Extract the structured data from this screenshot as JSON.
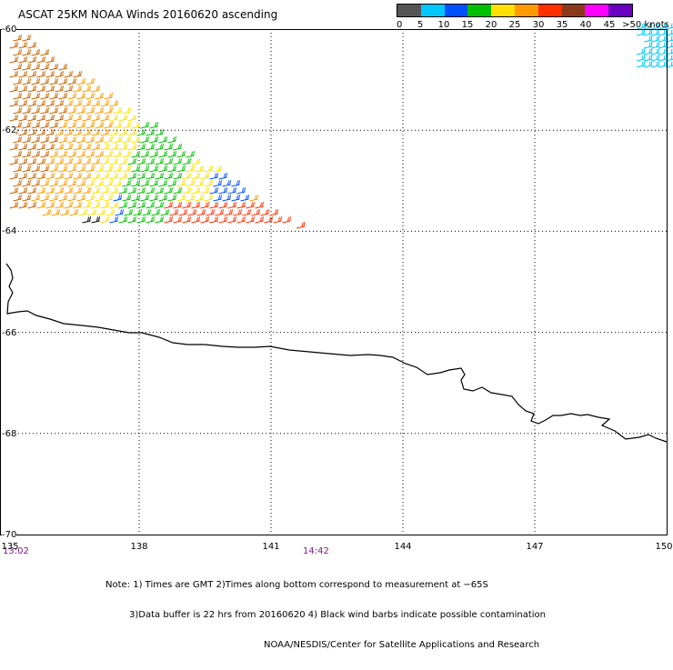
{
  "title": "ASCAT 25KM NOAA Winds 20160620 ascending",
  "legend": {
    "labels": [
      "0",
      "5",
      "10",
      "15",
      "20",
      "25",
      "30",
      "35",
      "40",
      "45",
      ">50 knots"
    ],
    "colors": [
      "#555555",
      "#00c8ff",
      "#0050ff",
      "#00c000",
      "#ffe000",
      "#ff9a00",
      "#ff3000",
      "#8a3a1a",
      "#ff00ff",
      "#6a00c0"
    ],
    "colors_extra": [
      "#ff0000"
    ]
  },
  "axes": {
    "x_ticks": [
      "135",
      "138",
      "141",
      "144",
      "147",
      "150"
    ],
    "y_ticks": [
      "-60",
      "-62",
      "-64",
      "-66",
      "-68",
      "-70"
    ],
    "x_range": [
      135,
      150
    ],
    "y_range": [
      -70,
      -60
    ]
  },
  "times": {
    "left": "13:02",
    "mid": "14:42"
  },
  "notes": [
    "Note: 1) Times are GMT 2)Times along bottom correspond to measurement at −65S",
    "3)Data buffer is 22 hrs from 20160620 4) Black wind barbs indicate possible contamination",
    "NOAA/NESDIS/Center for Satellite Applications and Research"
  ],
  "map_features": {
    "coastline": "Antarctic coastline",
    "wind_swath_colors": {
      "brown": "#c86400",
      "orange": "#ff9a00",
      "yellow": "#ffe000",
      "green": "#00c000",
      "blue": "#0050ff",
      "red": "#ff3000",
      "cyan": "#00c8ff",
      "black": "#000000"
    }
  }
}
